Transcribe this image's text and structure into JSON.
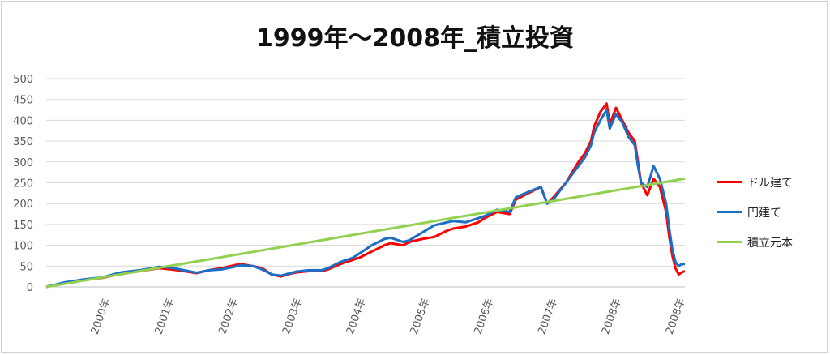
{
  "chart_data": {
    "type": "line",
    "title": "1999年～2008年_積立投資",
    "xlabel": "",
    "ylabel": "",
    "ylim": [
      0,
      500
    ],
    "yticks": [
      0,
      50,
      100,
      150,
      200,
      250,
      300,
      350,
      400,
      450,
      500
    ],
    "x_tick_labels": [
      "2000年",
      "2001年",
      "2002年",
      "2003年",
      "2004年",
      "2005年",
      "2006年",
      "2007年",
      "2008年",
      "2008年"
    ],
    "x_range": [
      0,
      10
    ],
    "grid": true,
    "legend_position": "right",
    "series": [
      {
        "name": "ドル建て",
        "color": "#ff0000",
        "points": [
          [
            0,
            0
          ],
          [
            0.3,
            10
          ],
          [
            0.6,
            17
          ],
          [
            0.9,
            22
          ],
          [
            1.0,
            25
          ],
          [
            1.2,
            32
          ],
          [
            1.5,
            38
          ],
          [
            1.8,
            45
          ],
          [
            2.0,
            42
          ],
          [
            2.2,
            38
          ],
          [
            2.4,
            33
          ],
          [
            2.6,
            40
          ],
          [
            2.8,
            45
          ],
          [
            3.0,
            52
          ],
          [
            3.1,
            55
          ],
          [
            3.3,
            50
          ],
          [
            3.45,
            45
          ],
          [
            3.6,
            30
          ],
          [
            3.75,
            25
          ],
          [
            3.9,
            32
          ],
          [
            4.0,
            35
          ],
          [
            4.2,
            38
          ],
          [
            4.4,
            38
          ],
          [
            4.5,
            42
          ],
          [
            4.7,
            55
          ],
          [
            4.9,
            65
          ],
          [
            5.0,
            70
          ],
          [
            5.2,
            85
          ],
          [
            5.4,
            100
          ],
          [
            5.5,
            105
          ],
          [
            5.7,
            100
          ],
          [
            5.8,
            108
          ],
          [
            6.0,
            115
          ],
          [
            6.2,
            120
          ],
          [
            6.4,
            135
          ],
          [
            6.5,
            140
          ],
          [
            6.7,
            145
          ],
          [
            6.9,
            155
          ],
          [
            7.0,
            165
          ],
          [
            7.2,
            180
          ],
          [
            7.4,
            175
          ],
          [
            7.5,
            210
          ],
          [
            7.7,
            225
          ],
          [
            7.9,
            240
          ],
          [
            8.0,
            200
          ],
          [
            8.1,
            215
          ],
          [
            8.3,
            250
          ],
          [
            8.5,
            300
          ],
          [
            8.6,
            320
          ],
          [
            8.7,
            350
          ],
          [
            8.75,
            385
          ],
          [
            8.85,
            420
          ],
          [
            8.95,
            440
          ],
          [
            9.0,
            390
          ],
          [
            9.1,
            430
          ],
          [
            9.2,
            400
          ],
          [
            9.3,
            370
          ],
          [
            9.4,
            350
          ],
          [
            9.45,
            300
          ],
          [
            9.5,
            250
          ],
          [
            9.6,
            220
          ],
          [
            9.7,
            260
          ],
          [
            9.8,
            240
          ],
          [
            9.85,
            210
          ],
          [
            9.9,
            180
          ],
          [
            9.95,
            120
          ],
          [
            10.0,
            75
          ],
          [
            10.05,
            45
          ],
          [
            10.1,
            30
          ],
          [
            10.15,
            35
          ],
          [
            10.2,
            38
          ]
        ]
      },
      {
        "name": "円建て",
        "color": "#1a6fc4",
        "points": [
          [
            0,
            0
          ],
          [
            0.3,
            11
          ],
          [
            0.6,
            18
          ],
          [
            0.9,
            23
          ],
          [
            1.0,
            27
          ],
          [
            1.2,
            35
          ],
          [
            1.5,
            40
          ],
          [
            1.8,
            48
          ],
          [
            2.0,
            46
          ],
          [
            2.2,
            40
          ],
          [
            2.4,
            34
          ],
          [
            2.6,
            40
          ],
          [
            2.8,
            42
          ],
          [
            3.0,
            48
          ],
          [
            3.1,
            52
          ],
          [
            3.3,
            50
          ],
          [
            3.45,
            42
          ],
          [
            3.6,
            30
          ],
          [
            3.75,
            27
          ],
          [
            3.9,
            33
          ],
          [
            4.0,
            37
          ],
          [
            4.2,
            40
          ],
          [
            4.4,
            40
          ],
          [
            4.5,
            45
          ],
          [
            4.7,
            60
          ],
          [
            4.9,
            70
          ],
          [
            5.0,
            80
          ],
          [
            5.2,
            100
          ],
          [
            5.4,
            115
          ],
          [
            5.5,
            118
          ],
          [
            5.7,
            108
          ],
          [
            5.8,
            112
          ],
          [
            6.0,
            130
          ],
          [
            6.2,
            148
          ],
          [
            6.4,
            155
          ],
          [
            6.5,
            158
          ],
          [
            6.7,
            155
          ],
          [
            6.9,
            165
          ],
          [
            7.0,
            170
          ],
          [
            7.2,
            185
          ],
          [
            7.4,
            180
          ],
          [
            7.5,
            215
          ],
          [
            7.7,
            228
          ],
          [
            7.9,
            240
          ],
          [
            8.0,
            200
          ],
          [
            8.1,
            210
          ],
          [
            8.3,
            250
          ],
          [
            8.5,
            290
          ],
          [
            8.6,
            310
          ],
          [
            8.7,
            340
          ],
          [
            8.75,
            370
          ],
          [
            8.85,
            400
          ],
          [
            8.95,
            425
          ],
          [
            9.0,
            380
          ],
          [
            9.1,
            415
          ],
          [
            9.2,
            395
          ],
          [
            9.3,
            360
          ],
          [
            9.4,
            340
          ],
          [
            9.45,
            290
          ],
          [
            9.5,
            250
          ],
          [
            9.6,
            240
          ],
          [
            9.7,
            290
          ],
          [
            9.8,
            260
          ],
          [
            9.85,
            230
          ],
          [
            9.9,
            200
          ],
          [
            9.95,
            140
          ],
          [
            10.0,
            90
          ],
          [
            10.05,
            60
          ],
          [
            10.1,
            50
          ],
          [
            10.15,
            55
          ],
          [
            10.2,
            55
          ]
        ]
      },
      {
        "name": "積立元本",
        "color": "#92d050",
        "points": [
          [
            0,
            0
          ],
          [
            10.2,
            260
          ]
        ]
      }
    ]
  }
}
